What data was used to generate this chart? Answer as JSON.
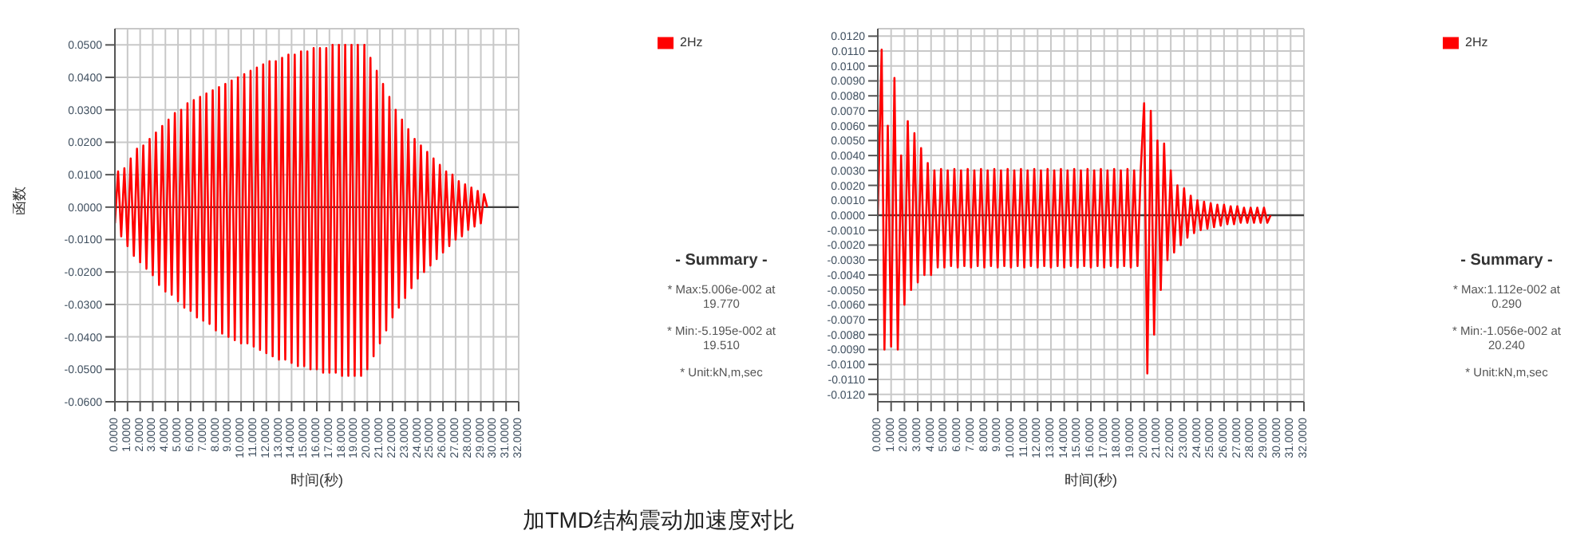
{
  "chart_data": [
    {
      "type": "line",
      "title": "加TMD结构震动加速度对比",
      "xlabel": "时间(秒)",
      "ylabel": "函数",
      "grid": true,
      "legend": "top right",
      "line_style": "solid",
      "xlim": [
        0,
        32
      ],
      "xticks": [
        {
          "value": 0,
          "label": "0.0000"
        },
        {
          "value": 1,
          "label": "1.0000"
        },
        {
          "value": 2,
          "label": "2.0000"
        },
        {
          "value": 3,
          "label": "3.0000"
        },
        {
          "value": 4,
          "label": "4.0000"
        },
        {
          "value": 5,
          "label": "5.0000"
        },
        {
          "value": 6,
          "label": "6.0000"
        },
        {
          "value": 7,
          "label": "7.0000"
        },
        {
          "value": 8,
          "label": "8.0000"
        },
        {
          "value": 9,
          "label": "9.0000"
        },
        {
          "value": 10,
          "label": "10.0000"
        },
        {
          "value": 11,
          "label": "11.0000"
        },
        {
          "value": 12,
          "label": "12.0000"
        },
        {
          "value": 13,
          "label": "13.0000"
        },
        {
          "value": 14,
          "label": "14.0000"
        },
        {
          "value": 15,
          "label": "15.0000"
        },
        {
          "value": 16,
          "label": "16.0000"
        },
        {
          "value": 17,
          "label": "17.0000"
        },
        {
          "value": 18,
          "label": "18.0000"
        },
        {
          "value": 19,
          "label": "19.0000"
        },
        {
          "value": 20,
          "label": "20.0000"
        },
        {
          "value": 21,
          "label": "21.0000"
        },
        {
          "value": 22,
          "label": "22.0000"
        },
        {
          "value": 23,
          "label": "23.0000"
        },
        {
          "value": 24,
          "label": "24.0000"
        },
        {
          "value": 25,
          "label": "25.0000"
        },
        {
          "value": 26,
          "label": "26.0000"
        },
        {
          "value": 27,
          "label": "27.0000"
        },
        {
          "value": 28,
          "label": "28.0000"
        },
        {
          "value": 29,
          "label": "29.0000"
        },
        {
          "value": 30,
          "label": "30.0000"
        },
        {
          "value": 31,
          "label": "31.0000"
        },
        {
          "value": 32,
          "label": "32.0000"
        }
      ],
      "ylim": [
        -0.06,
        0.055
      ],
      "yticks": [
        {
          "value": -0.06,
          "label": "-0.0600"
        },
        {
          "value": -0.05,
          "label": "-0.0500"
        },
        {
          "value": -0.04,
          "label": "-0.0400"
        },
        {
          "value": -0.03,
          "label": "-0.0300"
        },
        {
          "value": -0.02,
          "label": "-0.0200"
        },
        {
          "value": -0.01,
          "label": "-0.0100"
        },
        {
          "value": 0,
          "label": "0.0000"
        },
        {
          "value": 0.01,
          "label": "0.0100"
        },
        {
          "value": 0.02,
          "label": "0.0200"
        },
        {
          "value": 0.03,
          "label": "0.0300"
        },
        {
          "value": 0.04,
          "label": "0.0400"
        },
        {
          "value": 0.05,
          "label": "0.0500"
        }
      ],
      "ref_lines": [
        {
          "axis": "y",
          "value": 0,
          "color": "#404040"
        }
      ],
      "annotations": [
        "- Summary -",
        "* Max:5.006e-002 at 19.770",
        "* Min:-5.195e-002 at 19.510",
        "* Unit:kN,m,sec"
      ],
      "series": [
        {
          "name": "2Hz",
          "color": "#ff0000",
          "x": [
            0,
            0.25,
            0.5,
            0.75,
            1,
            1.25,
            1.5,
            1.75,
            2,
            2.25,
            2.5,
            2.75,
            3,
            3.25,
            3.5,
            3.75,
            4,
            4.25,
            4.5,
            4.75,
            5,
            5.25,
            5.5,
            5.75,
            6,
            6.25,
            6.5,
            6.75,
            7,
            7.25,
            7.5,
            7.75,
            8,
            8.25,
            8.5,
            8.75,
            9,
            9.25,
            9.5,
            9.75,
            10,
            10.25,
            10.5,
            10.75,
            11,
            11.25,
            11.5,
            11.75,
            12,
            12.25,
            12.5,
            12.75,
            13,
            13.25,
            13.5,
            13.75,
            14,
            14.25,
            14.5,
            14.75,
            15,
            15.25,
            15.5,
            15.75,
            16,
            16.25,
            16.5,
            16.75,
            17,
            17.25,
            17.5,
            17.75,
            18,
            18.25,
            18.5,
            18.75,
            19,
            19.25,
            19.51,
            19.77,
            20,
            20.25,
            20.5,
            20.75,
            21,
            21.25,
            21.5,
            21.75,
            22,
            22.25,
            22.5,
            22.75,
            23,
            23.25,
            23.5,
            23.75,
            24,
            24.25,
            24.5,
            24.75,
            25,
            25.25,
            25.5,
            25.75,
            26,
            26.25,
            26.5,
            26.75,
            27,
            27.25,
            27.5,
            27.75,
            28,
            28.25,
            28.5,
            28.75,
            29,
            29.25,
            29.5
          ],
          "values": [
            -0.005,
            0.011,
            -0.009,
            0.012,
            -0.012,
            0.015,
            -0.015,
            0.018,
            -0.017,
            0.019,
            -0.019,
            0.021,
            -0.021,
            0.023,
            -0.024,
            0.025,
            -0.026,
            0.027,
            -0.027,
            0.029,
            -0.029,
            0.03,
            -0.031,
            0.032,
            -0.032,
            0.033,
            -0.034,
            0.034,
            -0.035,
            0.035,
            -0.036,
            0.036,
            -0.038,
            0.037,
            -0.039,
            0.038,
            -0.04,
            0.039,
            -0.041,
            0.04,
            -0.042,
            0.041,
            -0.042,
            0.042,
            -0.043,
            0.043,
            -0.044,
            0.044,
            -0.045,
            0.045,
            -0.046,
            0.045,
            -0.047,
            0.046,
            -0.047,
            0.047,
            -0.048,
            0.047,
            -0.049,
            0.048,
            -0.049,
            0.048,
            -0.05,
            0.049,
            -0.05,
            0.049,
            -0.051,
            0.049,
            -0.051,
            0.05,
            -0.051,
            0.05,
            -0.052,
            0.05,
            -0.052,
            0.05,
            -0.052,
            0.05,
            -0.052,
            0.05,
            -0.05,
            0.046,
            -0.046,
            0.042,
            -0.042,
            0.038,
            -0.038,
            0.034,
            -0.034,
            0.03,
            -0.031,
            0.027,
            -0.028,
            0.024,
            -0.025,
            0.021,
            -0.022,
            0.019,
            -0.02,
            0.017,
            -0.018,
            0.015,
            -0.016,
            0.013,
            -0.014,
            0.011,
            -0.012,
            0.01,
            -0.01,
            0.008,
            -0.009,
            0.007,
            -0.007,
            0.006,
            -0.006,
            0.005,
            -0.005,
            0.004,
            0.0
          ]
        }
      ]
    },
    {
      "type": "line",
      "xlabel": "时间(秒)",
      "grid": true,
      "legend": "top right",
      "line_style": "solid",
      "xlim": [
        0,
        32
      ],
      "xticks": [
        {
          "value": 0,
          "label": "0.0000"
        },
        {
          "value": 1,
          "label": "1.0000"
        },
        {
          "value": 2,
          "label": "2.0000"
        },
        {
          "value": 3,
          "label": "3.0000"
        },
        {
          "value": 4,
          "label": "4.0000"
        },
        {
          "value": 5,
          "label": "5.0000"
        },
        {
          "value": 6,
          "label": "6.0000"
        },
        {
          "value": 7,
          "label": "7.0000"
        },
        {
          "value": 8,
          "label": "8.0000"
        },
        {
          "value": 9,
          "label": "9.0000"
        },
        {
          "value": 10,
          "label": "10.0000"
        },
        {
          "value": 11,
          "label": "11.0000"
        },
        {
          "value": 12,
          "label": "12.0000"
        },
        {
          "value": 13,
          "label": "13.0000"
        },
        {
          "value": 14,
          "label": "14.0000"
        },
        {
          "value": 15,
          "label": "15.0000"
        },
        {
          "value": 16,
          "label": "16.0000"
        },
        {
          "value": 17,
          "label": "17.0000"
        },
        {
          "value": 18,
          "label": "18.0000"
        },
        {
          "value": 19,
          "label": "19.0000"
        },
        {
          "value": 20,
          "label": "20.0000"
        },
        {
          "value": 21,
          "label": "21.0000"
        },
        {
          "value": 22,
          "label": "22.0000"
        },
        {
          "value": 23,
          "label": "23.0000"
        },
        {
          "value": 24,
          "label": "24.0000"
        },
        {
          "value": 25,
          "label": "25.0000"
        },
        {
          "value": 26,
          "label": "26.0000"
        },
        {
          "value": 27,
          "label": "27.0000"
        },
        {
          "value": 28,
          "label": "28.0000"
        },
        {
          "value": 29,
          "label": "29.0000"
        },
        {
          "value": 30,
          "label": "30.0000"
        },
        {
          "value": 31,
          "label": "31.0000"
        },
        {
          "value": 32,
          "label": "32.0000"
        }
      ],
      "ylim": [
        -0.0125,
        0.0125
      ],
      "yticks": [
        {
          "value": -0.012,
          "label": "-0.0120"
        },
        {
          "value": -0.011,
          "label": "-0.0110"
        },
        {
          "value": -0.01,
          "label": "-0.0100"
        },
        {
          "value": -0.009,
          "label": "-0.0090"
        },
        {
          "value": -0.008,
          "label": "-0.0080"
        },
        {
          "value": -0.007,
          "label": "-0.0070"
        },
        {
          "value": -0.006,
          "label": "-0.0060"
        },
        {
          "value": -0.005,
          "label": "-0.0050"
        },
        {
          "value": -0.004,
          "label": "-0.0040"
        },
        {
          "value": -0.003,
          "label": "-0.0030"
        },
        {
          "value": -0.002,
          "label": "-0.0020"
        },
        {
          "value": -0.001,
          "label": "-0.0010"
        },
        {
          "value": 0,
          "label": "0.0000"
        },
        {
          "value": 0.001,
          "label": "0.0010"
        },
        {
          "value": 0.002,
          "label": "0.0020"
        },
        {
          "value": 0.003,
          "label": "0.0030"
        },
        {
          "value": 0.004,
          "label": "0.0040"
        },
        {
          "value": 0.005,
          "label": "0.0050"
        },
        {
          "value": 0.006,
          "label": "0.0060"
        },
        {
          "value": 0.007,
          "label": "0.0070"
        },
        {
          "value": 0.008,
          "label": "0.0080"
        },
        {
          "value": 0.009,
          "label": "0.0090"
        },
        {
          "value": 0.01,
          "label": "0.0100"
        },
        {
          "value": 0.011,
          "label": "0.0110"
        },
        {
          "value": 0.012,
          "label": "0.0120"
        }
      ],
      "ref_lines": [
        {
          "axis": "y",
          "value": 0,
          "color": "#404040"
        }
      ],
      "annotations": [
        "- Summary -",
        "* Max:1.112e-002 at 0.290",
        "* Min:-1.056e-002 at 20.240",
        "* Unit:kN,m,sec"
      ],
      "series": [
        {
          "name": "2Hz",
          "color": "#ff0000",
          "x": [
            0,
            0.29,
            0.5,
            0.75,
            1,
            1.25,
            1.5,
            1.75,
            2,
            2.25,
            2.5,
            2.75,
            3,
            3.25,
            3.5,
            3.75,
            4,
            4.25,
            4.5,
            4.75,
            5,
            5.25,
            5.5,
            5.75,
            6,
            6.25,
            6.5,
            6.75,
            7,
            7.25,
            7.5,
            7.75,
            8,
            8.25,
            8.5,
            8.75,
            9,
            9.25,
            9.5,
            9.75,
            10,
            10.25,
            10.5,
            10.75,
            11,
            11.25,
            11.5,
            11.75,
            12,
            12.25,
            12.5,
            12.75,
            13,
            13.25,
            13.5,
            13.75,
            14,
            14.25,
            14.5,
            14.75,
            15,
            15.25,
            15.5,
            15.75,
            16,
            16.25,
            16.5,
            16.75,
            17,
            17.25,
            17.5,
            17.75,
            18,
            18.25,
            18.5,
            18.75,
            19,
            19.25,
            19.5,
            19.75,
            20,
            20.24,
            20.5,
            20.75,
            21,
            21.25,
            21.5,
            21.75,
            22,
            22.25,
            22.5,
            22.75,
            23,
            23.25,
            23.5,
            23.75,
            24,
            24.25,
            24.5,
            24.75,
            25,
            25.25,
            25.5,
            25.75,
            26,
            26.25,
            26.5,
            26.75,
            27,
            27.25,
            27.5,
            27.75,
            28,
            28.25,
            28.5,
            28.75,
            29,
            29.25,
            29.5
          ],
          "values": [
            0.0,
            0.0111,
            -0.009,
            0.006,
            -0.0088,
            0.0092,
            -0.009,
            0.004,
            -0.006,
            0.0063,
            -0.005,
            0.0055,
            -0.0045,
            0.0045,
            -0.004,
            0.0035,
            -0.004,
            0.003,
            -0.0035,
            0.0031,
            -0.0035,
            0.003,
            -0.0034,
            0.0031,
            -0.0035,
            0.003,
            -0.0034,
            0.0031,
            -0.0035,
            0.003,
            -0.0034,
            0.0031,
            -0.0035,
            0.003,
            -0.0034,
            0.0031,
            -0.0035,
            0.003,
            -0.0034,
            0.0031,
            -0.0035,
            0.003,
            -0.0034,
            0.0031,
            -0.0035,
            0.003,
            -0.0034,
            0.0031,
            -0.0035,
            0.003,
            -0.0034,
            0.0031,
            -0.0035,
            0.003,
            -0.0034,
            0.0031,
            -0.0035,
            0.003,
            -0.0034,
            0.0031,
            -0.0035,
            0.003,
            -0.0034,
            0.0031,
            -0.0035,
            0.003,
            -0.0034,
            0.0031,
            -0.0035,
            0.003,
            -0.0034,
            0.0031,
            -0.0035,
            0.003,
            -0.0034,
            0.0031,
            -0.0035,
            0.003,
            -0.0034,
            0.0031,
            0.0075,
            -0.0106,
            0.007,
            -0.008,
            0.005,
            -0.005,
            0.0048,
            -0.003,
            0.003,
            -0.0025,
            0.002,
            -0.002,
            0.0018,
            -0.0015,
            0.0013,
            -0.0012,
            0.001,
            -0.001,
            0.0009,
            -0.0009,
            0.0008,
            -0.0008,
            0.0007,
            -0.0007,
            0.0007,
            -0.0006,
            0.0006,
            -0.0006,
            0.0006,
            -0.0005,
            0.0005,
            -0.0005,
            0.0005,
            -0.0005,
            0.0005,
            -0.0005,
            0.0005,
            -0.0005,
            0.0
          ]
        }
      ]
    }
  ]
}
